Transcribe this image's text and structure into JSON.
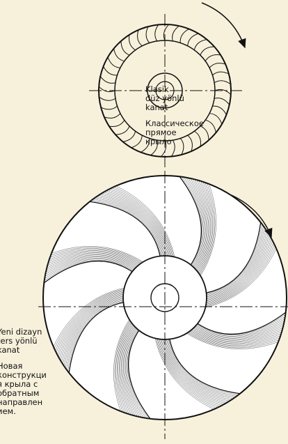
{
  "classic": {
    "tr": [
      "Klasik",
      "düz yönlü",
      "kanat"
    ],
    "ru": [
      "Классическое",
      "прямое",
      "крыло"
    ]
  },
  "new": {
    "tr": [
      "Yeni dizayn",
      "ters yönlü",
      "kanat"
    ],
    "ru": [
      "Новая",
      "конструкци",
      "я крыла с",
      "обратным",
      "направлен",
      "ием."
    ]
  }
}
